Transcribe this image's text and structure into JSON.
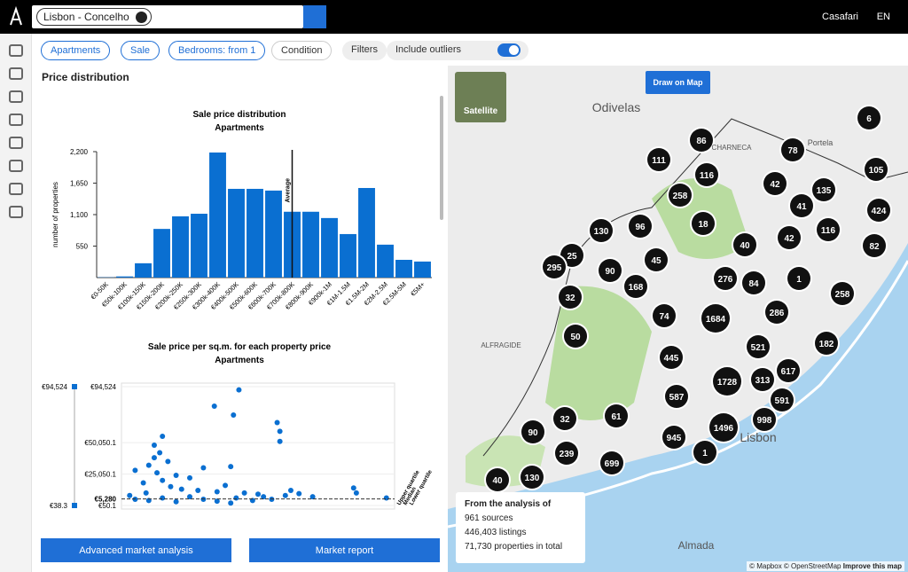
{
  "header": {
    "search_chip": "Lisbon - Concelho",
    "user": "Casafari",
    "language": "EN"
  },
  "filters": {
    "deal_type_1": "Apartments",
    "deal_type_2": "Sale",
    "bedrooms": "Bedrooms: from 1",
    "condition": "Condition",
    "more": "Filters",
    "outliers": "Include outliers"
  },
  "panel": {
    "title": "Price distribution",
    "button_1": "Advanced market analysis",
    "button_2": "Market report"
  },
  "chart_data": [
    {
      "type": "bar",
      "title": "Sale price distribution",
      "subtitle": "Apartments",
      "y_label": "number of properties",
      "annotation": "Average",
      "color": "#0a6fd1",
      "categories": [
        "€0-50K",
        "€50k-100K",
        "€100k-150K",
        "€150k-200K",
        "€200k-250K",
        "€250k-300K",
        "€300k-400K",
        "€400k-500K",
        "€500k-600K",
        "€600k-700K",
        "€700k-800K",
        "€800k-900K",
        "€900k-1M",
        "€1M-1.5M",
        "€1.5M-2M",
        "€2M-2.5M",
        "€2.5M-5M",
        "€5M+"
      ],
      "values": [
        5,
        20,
        250,
        850,
        1070,
        1115,
        2185,
        1550,
        1550,
        1520,
        1150,
        1150,
        1040,
        760,
        1565,
        575,
        310,
        280
      ],
      "ylim": [
        0,
        2200
      ],
      "yticks": [
        550,
        {
          "value": 1100,
          "label": "1,100"
        },
        {
          "value": 1650,
          "label": "1,650"
        },
        {
          "value": 2200,
          "label": "2,200"
        }
      ],
      "grid": false
    },
    {
      "type": "scatter",
      "title": "Sale price per sq.m. for each property price",
      "subtitle": "Apartments",
      "color": "#0a6fd1",
      "x": [
        43,
        34,
        41,
        57,
        58,
        15,
        58,
        12,
        14,
        12,
        30,
        40,
        10,
        5,
        20,
        25,
        15,
        8,
        18,
        22,
        28,
        35,
        45,
        50,
        60,
        62,
        65,
        70,
        85,
        86,
        97,
        3,
        5,
        10,
        15,
        20,
        25,
        30,
        35,
        38,
        42,
        48,
        55,
        40,
        52,
        9,
        13,
        17
      ],
      "y": [
        92000,
        79000,
        72000,
        66000,
        59000,
        55000,
        51000,
        48000,
        42000,
        38000,
        30000,
        31000,
        32000,
        28000,
        24000,
        22000,
        20000,
        18000,
        15000,
        13000,
        12000,
        11000,
        10000,
        9000,
        8000,
        12000,
        9500,
        7000,
        14000,
        10000,
        6000,
        8000,
        5000,
        4000,
        6000,
        3000,
        7000,
        5000,
        3500,
        16000,
        6000,
        4000,
        5000,
        2000,
        7000,
        10000,
        26000,
        35000
      ],
      "xlim": [
        0,
        100
      ],
      "ylim": [
        38.3,
        94524
      ],
      "yticks": [
        {
          "value": 94524,
          "label": "€94,524"
        },
        {
          "value": 50050.1,
          "label": "€50,050.1"
        },
        {
          "value": 25050.1,
          "label": "€25,050.1"
        },
        {
          "value": 50.1,
          "label": "€50.1"
        }
      ],
      "median": {
        "value": 5280,
        "label": "€5,280"
      },
      "quartile_labels": [
        "Upper quartile",
        "Median",
        "Lower quartile"
      ],
      "range": [
        {
          "value": 94524,
          "label": "€94,524"
        },
        {
          "value": 38.3,
          "label": "€38.3"
        }
      ]
    }
  ],
  "map": {
    "satellite": "Satellite",
    "draw": "Draw on Map",
    "places": [
      "Odivelas",
      "Lisbon",
      "Almada",
      "Portela",
      "CHARNECA",
      "ALFRAGIDE"
    ],
    "clusters": [
      6,
      86,
      78,
      111,
      116,
      105,
      42,
      135,
      258,
      41,
      424,
      18,
      130,
      96,
      116,
      42,
      40,
      82,
      25,
      295,
      90,
      45,
      276,
      84,
      1,
      168,
      32,
      258,
      74,
      1684,
      286,
      50,
      521,
      182,
      445,
      617,
      1728,
      313,
      587,
      591,
      61,
      32,
      998,
      1496,
      90,
      945,
      239,
      699,
      1,
      40,
      130
    ],
    "analysis": {
      "title": "From the analysis of",
      "items": [
        "961 sources",
        "446,403 listings",
        "71,730 properties in total"
      ]
    },
    "attribution": "© Mapbox © OpenStreetMap",
    "improve": "Improve this map"
  }
}
